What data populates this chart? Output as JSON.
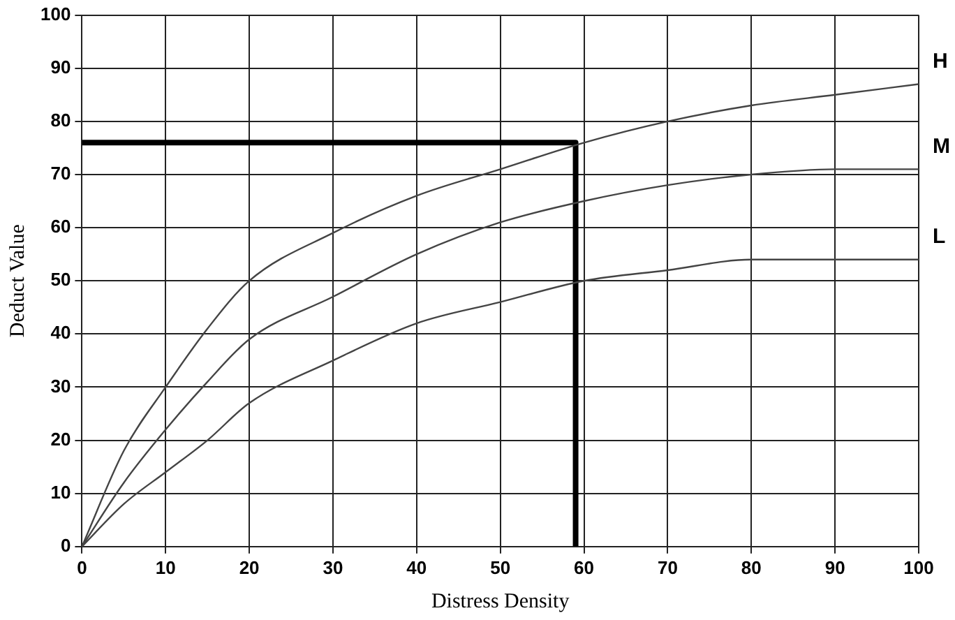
{
  "chart_data": {
    "type": "line",
    "xlabel": "Distress Density",
    "ylabel": "Deduct Value",
    "xlim": [
      0,
      100
    ],
    "xticks": [
      0,
      10,
      20,
      30,
      40,
      50,
      60,
      70,
      80,
      90,
      100
    ],
    "ylim": [
      0,
      100
    ],
    "yticks": [
      0,
      10,
      20,
      30,
      40,
      50,
      60,
      70,
      80,
      90,
      100
    ],
    "grid": true,
    "legend": false,
    "marker": "none",
    "line_style": "solid",
    "series": [
      {
        "name": "H",
        "color": "#444444",
        "x": [
          0,
          5,
          10,
          15,
          20,
          30,
          40,
          50,
          60,
          70,
          80,
          90,
          100
        ],
        "values": [
          0,
          18,
          30,
          41,
          50,
          59,
          66,
          71,
          76,
          80,
          83,
          85,
          87
        ]
      },
      {
        "name": "M",
        "color": "#444444",
        "x": [
          0,
          5,
          10,
          15,
          20,
          30,
          40,
          50,
          60,
          70,
          80,
          90,
          100
        ],
        "values": [
          0,
          12,
          22,
          31,
          39,
          47,
          55,
          61,
          65,
          68,
          70,
          71,
          71
        ]
      },
      {
        "name": "L",
        "color": "#444444",
        "x": [
          0,
          5,
          10,
          15,
          20,
          30,
          40,
          50,
          60,
          70,
          80,
          90,
          100
        ],
        "values": [
          0,
          8,
          14,
          20,
          27,
          35,
          42,
          46,
          50,
          52,
          54,
          54,
          54
        ]
      },
      {
        "color": "#000000",
        "x": [
          0,
          59,
          59
        ],
        "values": [
          76,
          76,
          0
        ]
      }
    ]
  }
}
